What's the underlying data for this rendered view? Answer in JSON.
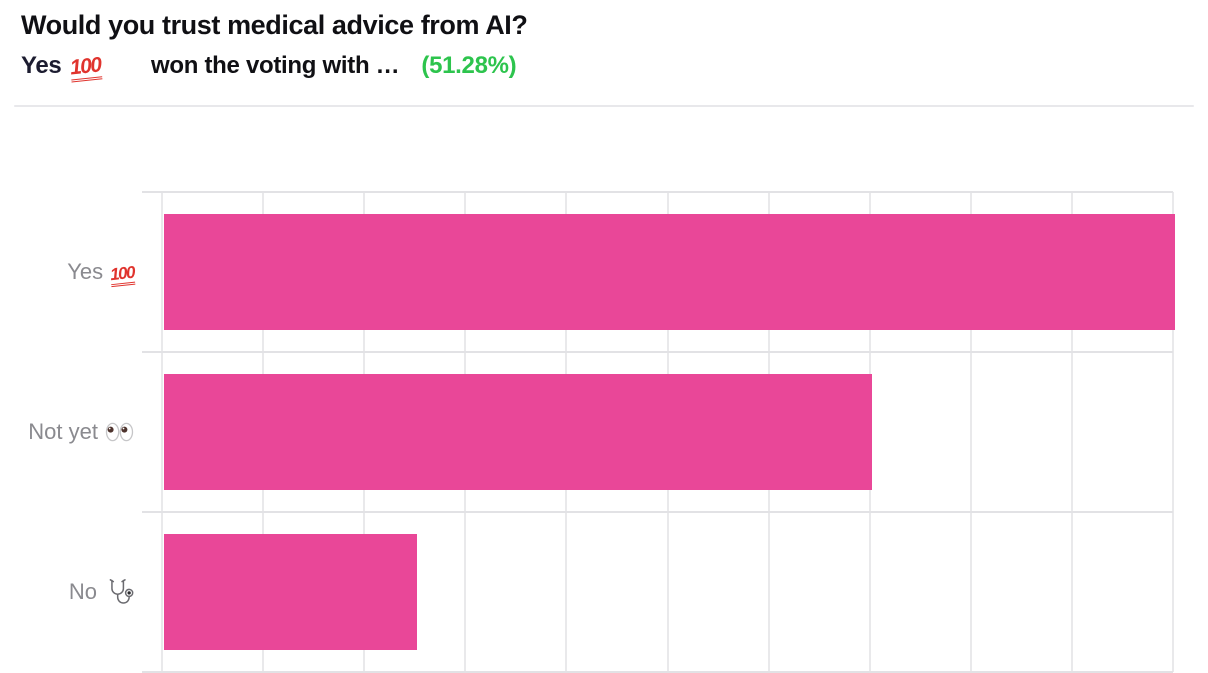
{
  "header": {
    "title": "Would you trust medical advice from AI?",
    "winner_label": "Yes",
    "winner_emoji": "💯",
    "result_text": "won the voting with …",
    "winner_percent": "(51.28%)"
  },
  "colors": {
    "bar": "#e94798",
    "percent_green": "#2dc44d",
    "title_text": "#101014",
    "winner_text": "#1c1c30",
    "label_gray": "#8a8a8f",
    "grid_vertical": "#e9e9eb",
    "grid_horizontal": "#e2e2e5",
    "divider": "#e8e8eb",
    "emoji_red": "#e0342e"
  },
  "emoji_render": {
    "hundred_text": "100"
  },
  "chart_data": {
    "type": "bar",
    "orientation": "horizontal",
    "title": "Would you trust medical advice from AI?",
    "categories": [
      "Yes 💯",
      "Not yet 👀",
      "No 🩺"
    ],
    "values": [
      51.28,
      35.9,
      12.82
    ],
    "unit": "percent",
    "xlabel": "",
    "ylabel": "",
    "xlim": [
      0,
      51.28
    ],
    "grid": true,
    "grid_divisions": 10,
    "legend": false,
    "bar_color": "#e94798",
    "rows": [
      {
        "label": "Yes",
        "emoji": "💯",
        "emoji_name": "hundred-points",
        "value": 51.28
      },
      {
        "label": "Not yet",
        "emoji": "👀",
        "emoji_name": "eyes",
        "value": 35.9
      },
      {
        "label": "No",
        "emoji": "🩺",
        "emoji_name": "stethoscope",
        "value": 12.82
      }
    ]
  }
}
